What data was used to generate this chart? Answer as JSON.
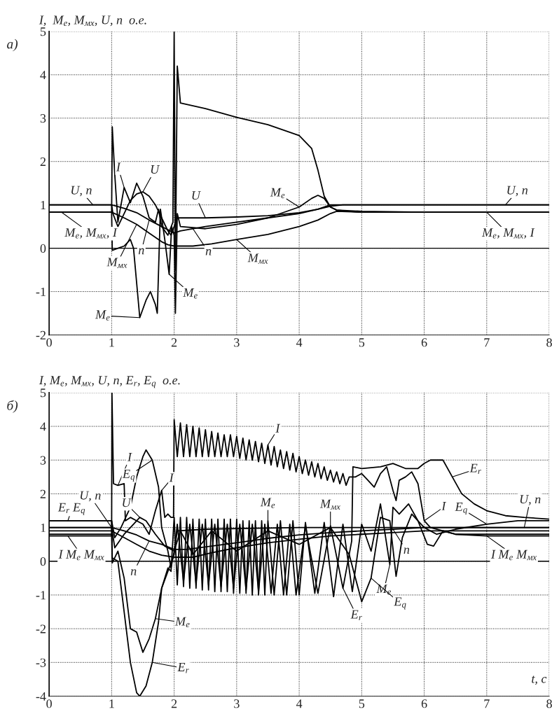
{
  "chart_data": [
    {
      "type": "line",
      "ylabel": "I,  M$_{e}$, M$_{мх}$, U, n  о.е.",
      "xlim": [
        0,
        8
      ],
      "ylim": [
        -2,
        5
      ],
      "xticks": [
        0,
        1,
        2,
        3,
        4,
        5,
        6,
        7,
        8
      ],
      "yticks": [
        -2,
        -1,
        0,
        1,
        2,
        3,
        4,
        5
      ],
      "grid": true,
      "ref_lines": [
        {
          "axis": "y",
          "value": 0,
          "color": "#000000"
        }
      ],
      "series": [
        {
          "color": "#000000",
          "x": [
            0,
            1,
            1.02,
            1.1,
            1.2,
            1.3,
            1.4,
            1.5,
            1.6,
            1.7,
            1.8,
            1.9,
            1.95,
            2.0,
            2.05,
            2.5,
            3.0,
            3.5,
            4.0,
            4.3,
            4.5,
            4.7,
            5,
            6,
            7,
            8
          ],
          "values": [
            1,
            1,
            0.8,
            0.5,
            0.8,
            1.1,
            1.25,
            1.3,
            1.2,
            1.0,
            0.7,
            0.4,
            0.3,
            0.5,
            0.7,
            0.7,
            0.72,
            0.75,
            0.82,
            0.9,
            1.0,
            1.0,
            1.0,
            1.0,
            1.0,
            1.0
          ]
        },
        {
          "color": "#000000",
          "x": [
            0,
            1,
            1.2,
            1.4,
            1.6,
            1.8,
            2.0,
            2.1,
            2.5,
            3,
            3.5,
            4,
            4.3,
            4.5,
            4.7,
            5,
            6,
            7,
            8
          ],
          "values": [
            1,
            1,
            0.92,
            0.82,
            0.65,
            0.5,
            0.35,
            0.4,
            0.5,
            0.6,
            0.7,
            0.8,
            0.9,
            0.97,
            1.0,
            1.0,
            1.0,
            1.0,
            1.0
          ]
        },
        {
          "color": "#000000",
          "x": [
            0,
            1,
            1.2,
            1.4,
            1.6,
            1.8,
            1.9,
            2.0,
            2.3,
            2.6,
            3,
            3.5,
            4,
            4.3,
            4.5,
            4.6,
            5,
            6,
            7,
            8
          ],
          "values": [
            0.83,
            0.83,
            0.7,
            0.55,
            0.35,
            0.15,
            0.08,
            0.05,
            0.05,
            0.1,
            0.2,
            0.32,
            0.5,
            0.65,
            0.8,
            0.85,
            0.83,
            0.83,
            0.83,
            0.83
          ]
        },
        {
          "color": "#000000",
          "x": [
            0,
            1,
            1.01,
            1.05,
            1.1,
            1.2,
            1.3,
            1.4,
            1.5,
            1.6,
            1.7,
            1.75,
            1.8,
            1.9,
            1.98,
            2.0,
            2.02,
            2.05,
            2.1,
            2.5,
            3,
            3.5,
            4,
            4.2,
            4.3,
            4.4,
            4.5,
            4.6,
            4.8,
            5,
            6,
            7,
            8
          ],
          "values": [
            0.83,
            0.83,
            2.8,
            1.7,
            0.6,
            1.4,
            1.05,
            1.5,
            1.2,
            0.7,
            0.6,
            0.9,
            0.5,
            0.3,
            0.6,
            5.0,
            -0.5,
            4.2,
            3.35,
            3.22,
            3.02,
            2.85,
            2.6,
            2.3,
            1.8,
            1.2,
            0.95,
            0.88,
            0.85,
            0.83,
            0.83,
            0.83,
            0.83
          ]
        },
        {
          "color": "#000000",
          "x": [
            0,
            1,
            1.01,
            1.1,
            1.2,
            1.3,
            1.35,
            1.45,
            1.55,
            1.62,
            1.7,
            1.73,
            1.78,
            1.85,
            1.92,
            1.96,
            2.0,
            2.02,
            2.05,
            2.1,
            2.5,
            3,
            3.5,
            4,
            4.2,
            4.3,
            4.4,
            4.5,
            4.6,
            5,
            6,
            7,
            8
          ],
          "values": [
            0.83,
            0.83,
            -0.05,
            0.0,
            0.05,
            0.2,
            0.0,
            -1.6,
            -1.2,
            -1.0,
            -1.3,
            -1.5,
            0.9,
            0.2,
            -0.6,
            0.5,
            0.3,
            -1.5,
            0.8,
            0.5,
            0.45,
            0.55,
            0.7,
            0.95,
            1.15,
            1.22,
            1.15,
            0.95,
            0.88,
            0.85,
            0.83,
            0.83,
            0.83
          ]
        }
      ],
      "annotations": [
        "а)",
        {
          "text": "U, n",
          "x": 0.7,
          "y": 1.0
        },
        {
          "text": "M$_{e}$, M$_{мх}$, I",
          "x": 0.2,
          "y": 0.83
        },
        {
          "text": "I",
          "x": 1.2,
          "y": 1.4
        },
        {
          "text": "U",
          "x": 1.5,
          "y": 1.3
        },
        {
          "text": "M$_{мх}$",
          "x": 1.4,
          "y": 0.55
        },
        {
          "text": "n",
          "x": 1.6,
          "y": 0.65
        },
        {
          "text": "M$_{e}$",
          "x": 1.92,
          "y": -0.6
        },
        {
          "text": "M$_{e}$",
          "x": 1.45,
          "y": -1.6
        },
        {
          "text": "U",
          "x": 2.5,
          "y": 0.7
        },
        {
          "text": "n",
          "x": 2.3,
          "y": 0.45
        },
        {
          "text": "M$_{мх}$",
          "x": 3.0,
          "y": 0.2
        },
        {
          "text": "M$_{e}$",
          "x": 4.0,
          "y": 0.95
        },
        {
          "text": "U, n",
          "x": 7.3,
          "y": 1.0
        },
        {
          "text": "M$_{e}$, M$_{мх}$, I",
          "x": 7.0,
          "y": 0.83
        }
      ]
    },
    {
      "type": "line",
      "ylabel": "I, M$_{e}$, M$_{мх}$, U, n, E$_{r}$, E$_{q}$  о.е.",
      "xlabel": "t, с",
      "xlim": [
        0,
        8
      ],
      "ylim": [
        -4,
        5
      ],
      "xticks": [
        0,
        1,
        2,
        3,
        4,
        5,
        6,
        7,
        8
      ],
      "yticks": [
        -4,
        -3,
        -2,
        -1,
        0,
        1,
        2,
        3,
        4,
        5
      ],
      "grid": true,
      "ref_lines": [
        {
          "axis": "y",
          "value": 0,
          "color": "#000000"
        }
      ],
      "series": [
        {
          "color": "#000000",
          "x": [
            0,
            1,
            1.005,
            1.03,
            1.1,
            1.2,
            1.22,
            1.3,
            1.4,
            1.5,
            1.6,
            1.7,
            1.8,
            1.85,
            1.9,
            1.95,
            1.99,
            2.0,
            2.05,
            2.1,
            2.15,
            2.2,
            2.25,
            2.3,
            2.35,
            2.4,
            2.45,
            2.5,
            2.55,
            2.6,
            2.65,
            2.7,
            2.75,
            2.8,
            2.85,
            2.9,
            2.95,
            3.0,
            3.05,
            3.1,
            3.15,
            3.2,
            3.25,
            3.3,
            3.35,
            3.4,
            3.45,
            3.5,
            3.55,
            3.6,
            3.65,
            3.7,
            3.75,
            3.8,
            3.85,
            3.9,
            3.95,
            4.0,
            4.05,
            4.1,
            4.15,
            4.2,
            4.25,
            4.3,
            4.35,
            4.4,
            4.45,
            4.5,
            4.55,
            4.6,
            4.65,
            4.7,
            4.75,
            4.8,
            4.9,
            5.0,
            5.1,
            5.2,
            5.3,
            5.4,
            5.5,
            5.55,
            5.6,
            5.7,
            5.8,
            5.9,
            6.0,
            6.1,
            6.3,
            6.5,
            7,
            8
          ],
          "values": [
            0.75,
            0.75,
            5.0,
            2.3,
            2.25,
            2.3,
            1.2,
            1.3,
            1.2,
            1.1,
            0.8,
            1.5,
            2.1,
            1.3,
            1.4,
            1.3,
            1.3,
            4.2,
            3.1,
            4.1,
            3.1,
            4.05,
            3.1,
            4.0,
            3.1,
            3.95,
            3.1,
            3.9,
            3.1,
            3.85,
            3.1,
            3.8,
            3.1,
            3.75,
            3.1,
            3.75,
            3.1,
            3.7,
            3.05,
            3.65,
            3.0,
            3.6,
            3.0,
            3.55,
            2.95,
            3.5,
            2.9,
            3.45,
            2.85,
            3.4,
            2.8,
            3.3,
            2.75,
            3.25,
            2.7,
            3.2,
            2.65,
            3.1,
            2.6,
            3.0,
            2.55,
            2.95,
            2.5,
            2.9,
            2.45,
            2.8,
            2.4,
            2.7,
            2.35,
            2.65,
            2.3,
            2.6,
            2.25,
            2.5,
            2.5,
            2.6,
            2.4,
            2.2,
            2.6,
            2.8,
            2.1,
            1.8,
            2.4,
            2.5,
            2.65,
            2.3,
            1.2,
            1.0,
            0.9,
            0.8,
            0.75,
            0.75
          ]
        },
        {
          "color": "#000000",
          "x": [
            0,
            1,
            1.01,
            1.1,
            1.2,
            1.3,
            1.4,
            1.5,
            1.6,
            1.7,
            1.8,
            1.9,
            1.95,
            2.0,
            2.05,
            2.1,
            2.15,
            2.2,
            2.25,
            2.3,
            2.35,
            2.4,
            2.45,
            2.5,
            2.55,
            2.6,
            2.65,
            2.7,
            2.75,
            2.8,
            2.85,
            2.9,
            2.95,
            3.0,
            3.05,
            3.1,
            3.15,
            3.2,
            3.25,
            3.3,
            3.35,
            3.4,
            3.45,
            3.5,
            3.6,
            3.7,
            3.8,
            3.9,
            4.0,
            4.1,
            4.25,
            4.4,
            4.55,
            4.7,
            4.85,
            5.0,
            5.15,
            5.3,
            5.45,
            5.5,
            5.6,
            5.75,
            5.9,
            6.05,
            6.15,
            6.3,
            6.5,
            7,
            8
          ],
          "values": [
            0.8,
            0.8,
            -0.05,
            0.3,
            -0.5,
            -2.0,
            -2.1,
            -2.7,
            -2.3,
            -1.7,
            -0.8,
            -0.2,
            -0.3,
            1.3,
            -0.7,
            1.3,
            -0.75,
            1.3,
            -0.8,
            1.25,
            -0.8,
            1.25,
            -0.85,
            1.25,
            -0.85,
            1.25,
            -0.9,
            1.25,
            -0.9,
            1.25,
            -0.9,
            1.25,
            -0.95,
            1.25,
            -0.95,
            1.2,
            -0.95,
            1.2,
            -1.0,
            1.2,
            -1.0,
            1.2,
            -1.0,
            1.2,
            -1.0,
            1.2,
            -1.0,
            1.2,
            -1.0,
            1.15,
            -0.95,
            1.15,
            -1.05,
            1.1,
            -0.9,
            1.1,
            0.3,
            1.7,
            -0.1,
            1.6,
            1.4,
            1.7,
            1.2,
            0.5,
            0.45,
            0.9,
            0.8,
            0.8,
            0.8
          ]
        },
        {
          "color": "#000000",
          "x": [
            0,
            1,
            1.01,
            1.1,
            1.2,
            1.3,
            1.4,
            1.45,
            1.55,
            1.65,
            1.75,
            1.8,
            1.9,
            2.0,
            2.05,
            2.15,
            2.25,
            2.35,
            2.45,
            2.55,
            2.65,
            2.75,
            2.85,
            2.95,
            3.05,
            3.15,
            3.25,
            3.35,
            3.45,
            3.55,
            3.65,
            3.75,
            3.85,
            3.95,
            4.1,
            4.3,
            4.5,
            4.7,
            4.84,
            4.86,
            5.0,
            5.3,
            5.5,
            5.7,
            5.9,
            6.0,
            6.1,
            6.3,
            6.45,
            6.6,
            6.8,
            7.0,
            7.3,
            7.6,
            8
          ],
          "values": [
            1.2,
            1.2,
            0.1,
            0.0,
            -1.5,
            -3.0,
            -3.9,
            -4.0,
            -3.7,
            -3.0,
            -1.8,
            -0.8,
            -0.3,
            0.2,
            1.1,
            -0.6,
            1.1,
            -0.65,
            1.1,
            -0.7,
            1.1,
            -0.75,
            1.1,
            -0.8,
            1.1,
            -0.85,
            1.1,
            -0.9,
            1.1,
            -0.95,
            1.1,
            -1.0,
            1.1,
            -1.0,
            1.05,
            -0.95,
            1.05,
            -0.8,
            0.6,
            2.8,
            2.75,
            2.8,
            2.9,
            2.75,
            2.75,
            2.9,
            3.0,
            3.0,
            2.5,
            2.0,
            1.7,
            1.5,
            1.35,
            1.3,
            1.25
          ]
        },
        {
          "color": "#000000",
          "x": [
            0,
            1,
            1.05,
            1.15,
            1.3,
            1.4,
            1.5,
            1.55,
            1.65,
            1.75,
            1.8,
            1.9,
            1.95,
            2.0,
            2.1,
            2.3,
            2.6,
            3.0,
            3.5,
            4.0,
            4.5,
            4.8,
            5.0,
            5.15,
            5.3,
            5.45,
            5.55,
            5.65,
            5.8,
            6.0,
            6.2,
            6.5,
            7,
            7.5,
            8
          ],
          "values": [
            1.2,
            1.2,
            0.7,
            1.0,
            1.6,
            2.5,
            3.1,
            3.3,
            3.0,
            2.2,
            1.0,
            0.3,
            -0.2,
            0.3,
            0.9,
            0.2,
            0.9,
            0.3,
            0.9,
            0.5,
            1.0,
            0.2,
            -1.2,
            -0.5,
            1.3,
            1.2,
            -0.45,
            0.7,
            1.4,
            1.0,
            0.8,
            0.95,
            1.1,
            1.2,
            1.2
          ]
        },
        {
          "color": "#000000",
          "x": [
            0,
            1,
            1.05,
            1.2,
            1.35,
            1.45,
            1.55,
            1.7,
            1.85,
            2.0,
            2.05,
            2.5,
            3,
            4,
            5,
            6,
            7,
            8
          ],
          "values": [
            1.0,
            1.0,
            0.4,
            0.8,
            1.1,
            1.3,
            1.2,
            0.8,
            0.45,
            0.3,
            0.9,
            0.95,
            0.97,
            1.0,
            1.0,
            1.0,
            1.0,
            1.0
          ]
        },
        {
          "color": "#000000",
          "x": [
            0,
            1,
            1.2,
            1.4,
            1.6,
            1.8,
            2.0,
            2.2,
            2.6,
            3,
            3.5,
            4,
            4.5,
            5,
            5.5,
            6,
            7,
            8
          ],
          "values": [
            1.0,
            1.0,
            0.9,
            0.78,
            0.6,
            0.5,
            0.35,
            0.35,
            0.45,
            0.55,
            0.68,
            0.78,
            0.85,
            0.9,
            0.95,
            1.0,
            1.0,
            1.0
          ]
        },
        {
          "color": "#000000",
          "x": [
            0,
            1,
            1.2,
            1.4,
            1.6,
            1.8,
            2.0,
            2.3,
            2.6,
            3,
            3.5,
            4,
            4.5,
            5,
            5.5,
            6,
            6.5,
            8
          ],
          "values": [
            0.9,
            0.9,
            0.7,
            0.5,
            0.3,
            0.18,
            0.12,
            0.12,
            0.25,
            0.4,
            0.55,
            0.65,
            0.75,
            0.8,
            0.85,
            0.9,
            0.9,
            0.9
          ]
        }
      ],
      "annotations": [
        "б)",
        {
          "text": "E$_{r}$ E$_{q}$",
          "x": 0.3,
          "y": 1.2
        },
        {
          "text": "U, n",
          "x": 1.0,
          "y": 1.0
        },
        {
          "text": "I M$_{e}$ M$_{мх}$",
          "x": 0.3,
          "y": 0.75
        },
        {
          "text": "I",
          "x": 1.1,
          "y": 2.25
        },
        {
          "text": "E$_{q}$",
          "x": 1.65,
          "y": 3.0
        },
        {
          "text": "U",
          "x": 1.45,
          "y": 1.3
        },
        {
          "text": "I",
          "x": 1.8,
          "y": 2.1
        },
        {
          "text": "n",
          "x": 1.6,
          "y": 0.6
        },
        {
          "text": "M$_{e}$",
          "x": 1.7,
          "y": -1.7
        },
        {
          "text": "E$_{r}$",
          "x": 1.65,
          "y": -3.0
        },
        {
          "text": "I",
          "x": 3.5,
          "y": 3.45
        },
        {
          "text": "M$_{e}$",
          "x": 3.5,
          "y": 1.2
        },
        {
          "text": "M$_{мх}$",
          "x": 4.5,
          "y": 0.75
        },
        {
          "text": "E$_{r}$",
          "x": 4.7,
          "y": -0.8
        },
        {
          "text": "M$_{e}$",
          "x": 5.45,
          "y": -0.1
        },
        {
          "text": "E$_{q}$",
          "x": 5.15,
          "y": -0.5
        },
        {
          "text": "E$_{r}$",
          "x": 6.45,
          "y": 2.5
        },
        {
          "text": "I",
          "x": 6.0,
          "y": 1.2
        },
        {
          "text": "n",
          "x": 5.5,
          "y": 0.95
        },
        {
          "text": "E$_{q}$",
          "x": 7.0,
          "y": 1.1
        },
        {
          "text": "U, n",
          "x": 7.6,
          "y": 1.0
        },
        {
          "text": "I M$_{e}$ M$_{мх}$",
          "x": 7.0,
          "y": 0.75
        }
      ]
    }
  ]
}
